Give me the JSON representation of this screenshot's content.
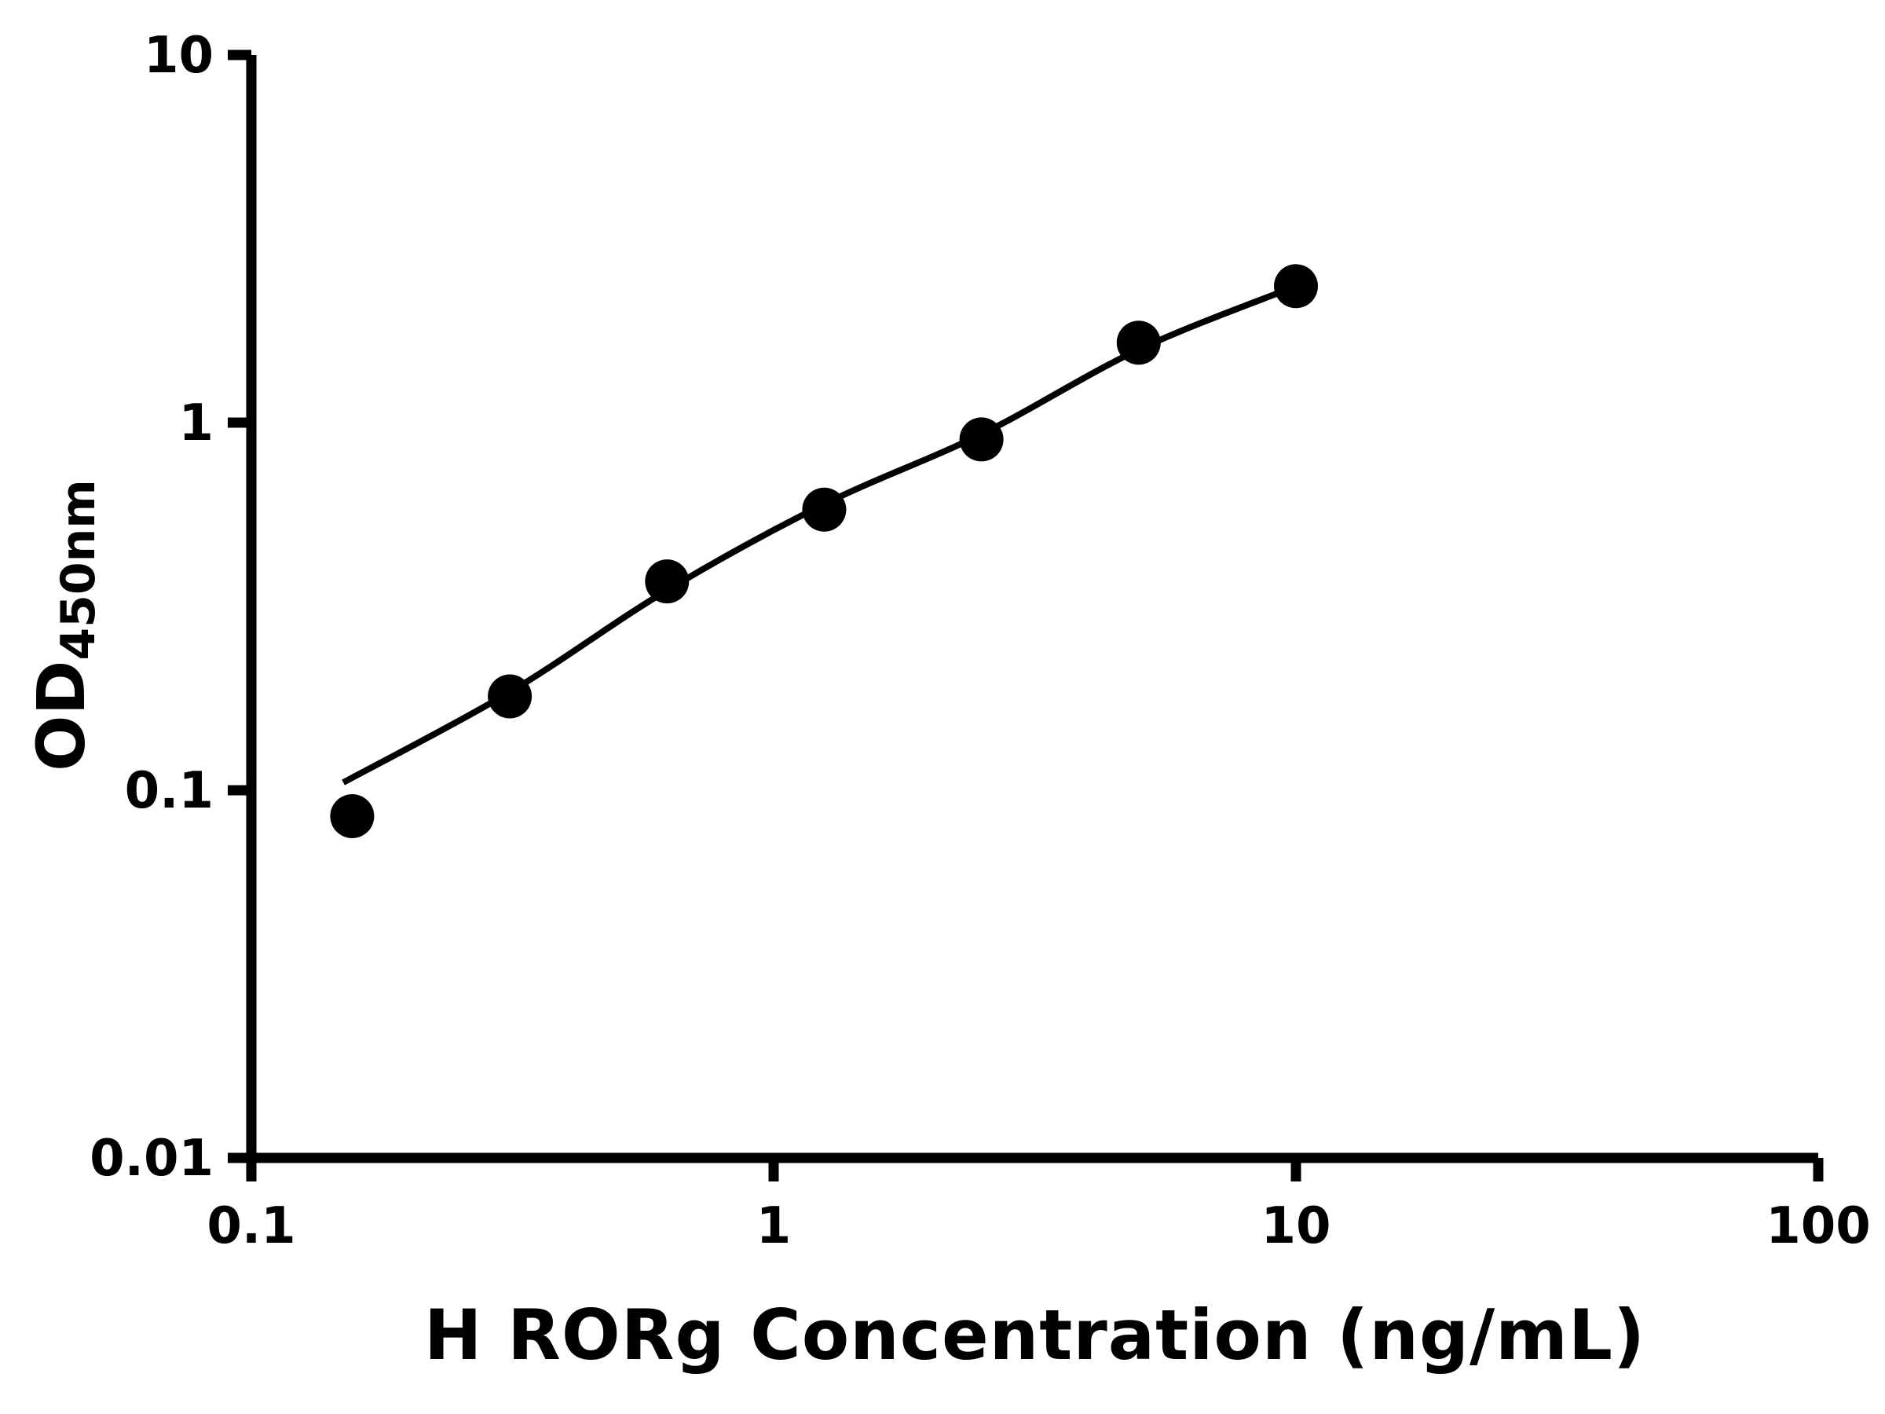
{
  "chart_data": {
    "type": "scatter",
    "title": "",
    "xlabel": "H RORg Concentration (ng/mL)",
    "ylabel_main": "OD",
    "ylabel_sub": "450nm",
    "x_scale": "log",
    "y_scale": "log",
    "xlim": [
      0.1,
      100
    ],
    "ylim": [
      0.01,
      10
    ],
    "grid": false,
    "legend": false,
    "axis_color": "#000000",
    "x_ticks": [
      {
        "value": 0.1,
        "label": "0.1"
      },
      {
        "value": 1,
        "label": "1"
      },
      {
        "value": 10,
        "label": "10"
      },
      {
        "value": 100,
        "label": "100"
      }
    ],
    "y_ticks": [
      {
        "value": 0.01,
        "label": "0.01"
      },
      {
        "value": 0.1,
        "label": "0.1"
      },
      {
        "value": 1,
        "label": "1"
      },
      {
        "value": 10,
        "label": "10"
      }
    ],
    "series": [
      {
        "name": "standard-curve-points",
        "marker": "circle",
        "color": "#000000",
        "points": [
          {
            "x": 0.156,
            "y": 0.085
          },
          {
            "x": 0.3125,
            "y": 0.18
          },
          {
            "x": 0.625,
            "y": 0.37
          },
          {
            "x": 1.25,
            "y": 0.58
          },
          {
            "x": 2.5,
            "y": 0.9
          },
          {
            "x": 5,
            "y": 1.65
          },
          {
            "x": 10,
            "y": 2.35
          }
        ]
      }
    ],
    "trend_line": {
      "name": "fitted-curve",
      "color": "#000000",
      "points": [
        {
          "x": 0.15,
          "y": 0.105
        },
        {
          "x": 0.3125,
          "y": 0.185
        },
        {
          "x": 0.625,
          "y": 0.35
        },
        {
          "x": 1.25,
          "y": 0.6
        },
        {
          "x": 2.5,
          "y": 0.93
        },
        {
          "x": 5,
          "y": 1.58
        },
        {
          "x": 10,
          "y": 2.35
        }
      ]
    }
  }
}
